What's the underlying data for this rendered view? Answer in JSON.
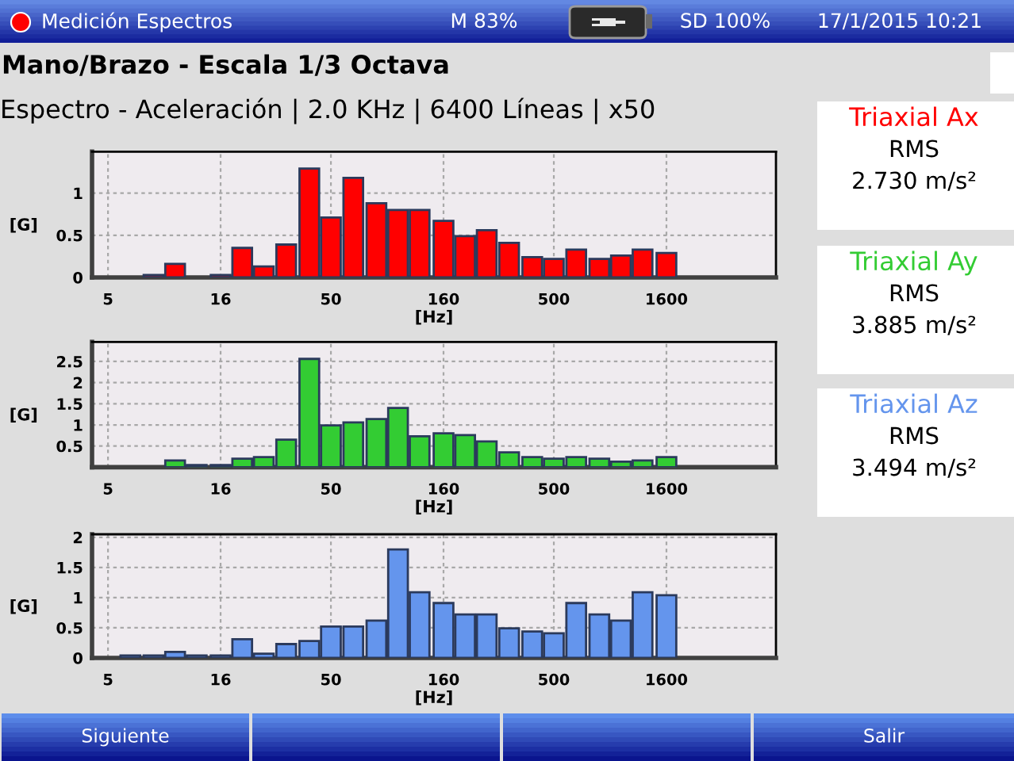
{
  "chart_data": [
    {
      "type": "bar",
      "title": "Mano/Brazo - Escala 1/3 Octava",
      "subtitle": "Espectro - Aceleración | 2.0 KHz | 6400 Líneas | x50",
      "xlabel": "[Hz]",
      "ylabel": "[G]",
      "x": [
        8,
        10,
        12.5,
        16,
        20,
        25,
        31.5,
        40,
        50,
        63,
        80,
        100,
        125,
        160,
        200,
        250,
        315,
        400,
        500,
        630,
        800,
        1000,
        1250,
        1600
      ],
      "series": [
        {
          "name": "Triaxial Ax",
          "color": "#ff0000",
          "values": [
            0.03,
            0.16,
            null,
            0.03,
            0.35,
            0.13,
            0.39,
            1.29,
            0.71,
            1.18,
            0.88,
            0.8,
            0.8,
            0.67,
            0.49,
            0.56,
            0.41,
            0.24,
            0.22,
            0.33,
            0.22,
            0.26,
            0.33,
            0.29
          ]
        }
      ],
      "log": "x",
      "xlim": [
        4.24,
        4960
      ],
      "xticks": [
        5,
        16,
        50,
        160,
        500,
        1600
      ],
      "ylim": [
        0,
        1.49
      ],
      "yticks": [
        0,
        0.5,
        1
      ],
      "grid": true,
      "annotations": [
        "RMS",
        "2.730 m/s²",
        "Medición Espectros",
        "M 83%",
        "SD 100%",
        "17/1/2015 10:21"
      ]
    },
    {
      "type": "bar",
      "xlabel": "[Hz]",
      "ylabel": "[G]",
      "x": [
        10,
        12.5,
        16,
        20,
        25,
        31.5,
        40,
        50,
        63,
        80,
        100,
        125,
        160,
        200,
        250,
        315,
        400,
        500,
        630,
        800,
        1000,
        1250,
        1600
      ],
      "series": [
        {
          "name": "Triaxial Ay",
          "color": "#33cc33",
          "values": [
            0.16,
            0.05,
            0.05,
            0.2,
            0.24,
            0.65,
            2.56,
            0.99,
            1.06,
            1.14,
            1.4,
            0.73,
            0.8,
            0.76,
            0.61,
            0.35,
            0.24,
            0.2,
            0.24,
            0.2,
            0.13,
            0.16,
            0.24
          ]
        }
      ],
      "log": "x",
      "xlim": [
        4.24,
        4960
      ],
      "xticks": [
        5,
        16,
        50,
        160,
        500,
        1600
      ],
      "ylim": [
        0,
        2.96
      ],
      "yticks": [
        0.5,
        1,
        1.5,
        2,
        2.5
      ],
      "grid": true,
      "annotations": [
        "RMS",
        "3.885 m/s²"
      ]
    },
    {
      "type": "bar",
      "xlabel": "[Hz]",
      "ylabel": "[G]",
      "x": [
        6.3,
        8,
        10,
        12.5,
        16,
        20,
        25,
        31.5,
        40,
        50,
        63,
        80,
        100,
        125,
        160,
        200,
        250,
        315,
        400,
        500,
        630,
        800,
        1000,
        1250,
        1600
      ],
      "series": [
        {
          "name": "Triaxial Az",
          "color": "#6495ed",
          "values": [
            0.04,
            0.04,
            0.1,
            0.04,
            0.04,
            0.31,
            0.07,
            0.23,
            0.28,
            0.52,
            0.52,
            0.62,
            1.8,
            1.09,
            0.91,
            0.72,
            0.72,
            0.49,
            0.44,
            0.41,
            0.91,
            0.72,
            0.62,
            1.09,
            1.04
          ]
        }
      ],
      "log": "x",
      "xlim": [
        4.24,
        4960
      ],
      "xticks": [
        5,
        16,
        50,
        160,
        500,
        1600
      ],
      "ylim": [
        0,
        2.05
      ],
      "yticks": [
        0,
        0.5,
        1,
        1.5,
        2
      ],
      "grid": true,
      "annotations": [
        "RMS",
        "3.494 m/s²",
        "Siguiente",
        "Salir"
      ]
    }
  ]
}
